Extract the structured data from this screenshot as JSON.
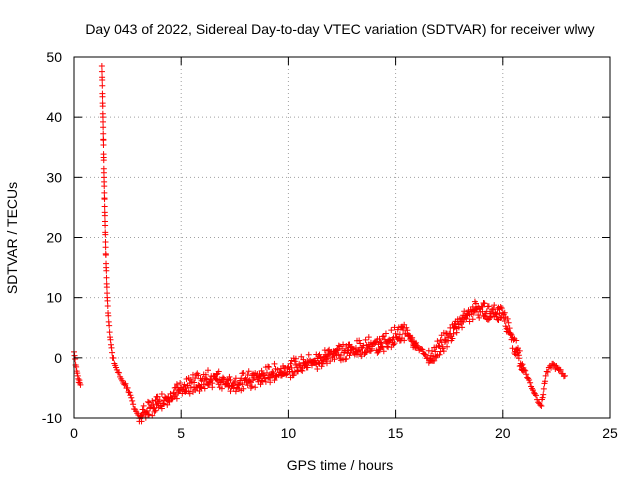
{
  "chart_data": {
    "type": "scatter",
    "title": "Day 043 of 2022, Sidereal Day-to-day VTEC variation (SDTVAR) for receiver wlwy",
    "xlabel": "GPS time / hours",
    "ylabel": "SDTVAR / TECUs",
    "xlim": [
      0,
      25
    ],
    "ylim": [
      -10,
      50
    ],
    "xticks": [
      "0",
      "5",
      "10",
      "15",
      "20",
      "25"
    ],
    "yticks": [
      "-10",
      "0",
      "10",
      "20",
      "30",
      "40",
      "50"
    ],
    "grid": true,
    "marker": "+",
    "color": "#ff0000",
    "series": [
      {
        "name": "SDTVAR",
        "x": [
          0.0,
          0.1,
          0.2,
          0.3,
          1.3,
          1.35,
          1.4,
          1.45,
          1.5,
          1.55,
          1.6,
          1.7,
          1.8,
          2.0,
          2.2,
          2.5,
          2.8,
          3.0,
          3.3,
          3.6,
          4.0,
          4.5,
          5.0,
          5.5,
          6.0,
          6.5,
          7.0,
          7.5,
          8.0,
          8.5,
          9.0,
          9.5,
          10.0,
          10.5,
          11.0,
          11.5,
          12.0,
          12.5,
          13.0,
          13.5,
          14.0,
          14.5,
          15.0,
          15.5,
          16.0,
          16.5,
          17.0,
          17.5,
          18.0,
          18.5,
          19.0,
          19.5,
          20.0,
          20.5,
          21.0,
          21.5,
          21.8,
          22.0,
          22.3,
          22.6,
          22.9
        ],
        "y": [
          1.0,
          -1.5,
          -3.5,
          -4.5,
          48.5,
          40.0,
          30.0,
          22.0,
          15.0,
          10.0,
          7.0,
          3.0,
          0.0,
          -2.0,
          -3.5,
          -5.0,
          -8.5,
          -9.5,
          -9.0,
          -8.0,
          -7.0,
          -6.0,
          -5.0,
          -4.0,
          -3.5,
          -3.0,
          -3.5,
          -4.0,
          -3.5,
          -3.0,
          -2.5,
          -2.0,
          -1.5,
          -1.0,
          -0.5,
          0.0,
          1.0,
          1.5,
          1.5,
          2.0,
          2.5,
          3.0,
          4.0,
          5.0,
          2.0,
          0.0,
          2.0,
          4.0,
          6.5,
          8.0,
          8.5,
          8.0,
          7.5,
          3.0,
          -2.0,
          -6.0,
          -8.0,
          -3.0,
          -1.0,
          -2.0,
          -3.0
        ]
      }
    ]
  }
}
